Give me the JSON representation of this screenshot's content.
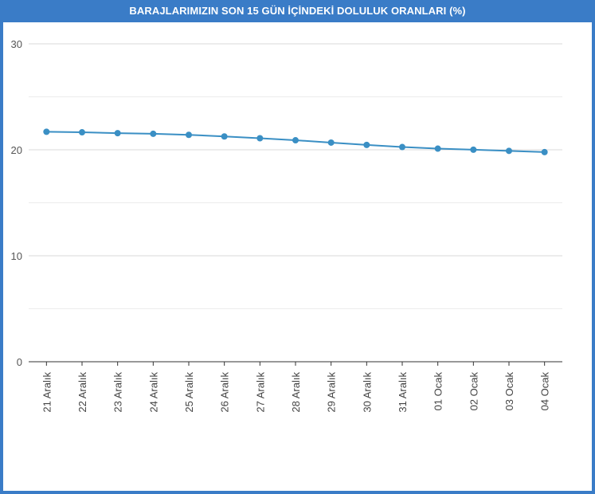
{
  "chart_data": {
    "type": "line",
    "title": "BARAJLARIMIZIN SON 15 GÜN İÇİNDEKİ DOLULUK ORANLARI (%)",
    "xlabel": "",
    "ylabel": "",
    "categories": [
      "21 Aralık",
      "22 Aralık",
      "23 Aralık",
      "24 Aralık",
      "25 Aralık",
      "26 Aralık",
      "27 Aralık",
      "28 Aralık",
      "29 Aralık",
      "30 Aralık",
      "31 Aralık",
      "01 Ocak",
      "02 Ocak",
      "03 Ocak",
      "04 Ocak"
    ],
    "series": [
      {
        "values": [
          21.7,
          21.65,
          21.57,
          21.51,
          21.41,
          21.26,
          21.09,
          20.9,
          20.68,
          20.46,
          20.26,
          20.11,
          20.01,
          19.9,
          19.78
        ]
      }
    ],
    "ylim": [
      0,
      30
    ],
    "yticks": [
      0,
      10,
      20,
      30
    ],
    "grid": true,
    "legend": "none",
    "colors": {
      "line": "#3a8fc4",
      "title_bg": "#3a7cc7",
      "title_text": "#ffffff",
      "grid": "#d9d9d9",
      "minor_grid": "#ececec",
      "axis": "#333333"
    }
  }
}
